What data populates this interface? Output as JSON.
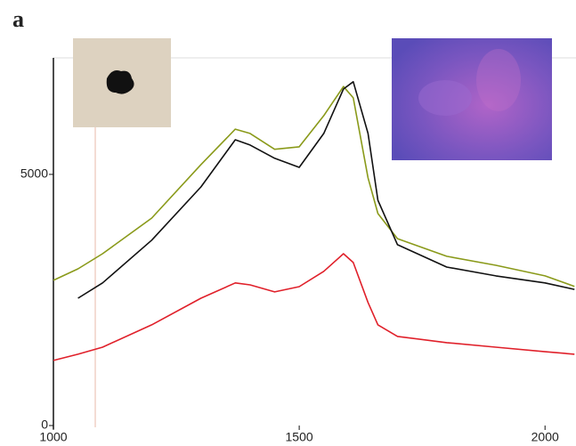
{
  "chart_data": {
    "type": "line",
    "panel_label": "a",
    "x": [
      1000,
      1050,
      1100,
      1200,
      1300,
      1370,
      1400,
      1450,
      1500,
      1550,
      1590,
      1610,
      1640,
      1660,
      1700,
      1800,
      1900,
      2000,
      2060
    ],
    "series": [
      {
        "color": "#8a9a1a",
        "values": [
          2890,
          3120,
          3420,
          4130,
          5195,
          5900,
          5815,
          5500,
          5550,
          6170,
          6750,
          6525,
          4930,
          4220,
          3720,
          3370,
          3190,
          2980,
          2770
        ]
      },
      {
        "color": "#111111",
        "values": [
          null,
          2535,
          2840,
          3690,
          4750,
          5690,
          5585,
          5320,
          5140,
          5815,
          6700,
          6845,
          5815,
          4485,
          3600,
          3155,
          2980,
          2840,
          2710
        ]
      },
      {
        "color": "#e0202a",
        "values": [
          1295,
          1420,
          1560,
          2005,
          2535,
          2840,
          2800,
          2660,
          2765,
          3070,
          3420,
          3245,
          2450,
          2005,
          1775,
          1650,
          1560,
          1470,
          1420
        ]
      }
    ],
    "xlim": [
      1000,
      2063
    ],
    "xticks": [
      1000,
      1500,
      2000
    ],
    "ylim": [
      0,
      7320
    ],
    "yticks": [
      0,
      5000
    ]
  }
}
